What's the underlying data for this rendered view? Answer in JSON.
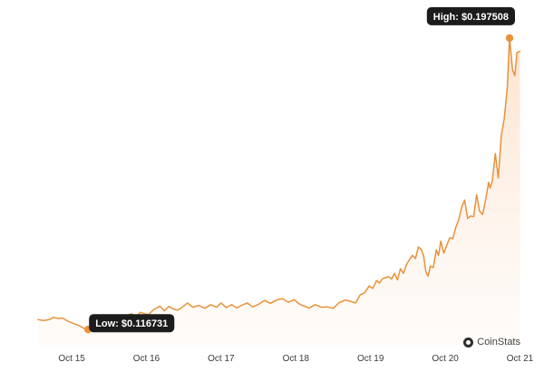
{
  "chart_data": {
    "type": "area",
    "x_ticks": [
      "Oct 15",
      "Oct 16",
      "Oct 17",
      "Oct 18",
      "Oct 19",
      "Oct 20",
      "Oct 21"
    ],
    "x_range": [
      14.55,
      21.03
    ],
    "y_range": [
      0.1125,
      0.2025
    ],
    "y_ticks": [
      0.115,
      0.125,
      0.135,
      0.145,
      0.155,
      0.165,
      0.175,
      0.185,
      0.195
    ],
    "y_tick_labels": [
      "",
      "",
      "",
      "",
      "",
      "",
      "",
      "",
      ""
    ],
    "line_color": "#e8923a",
    "fill_color": "#fbe3cf",
    "grid": false,
    "series": [
      {
        "x": [
          14.55,
          14.62,
          14.7,
          14.76,
          14.82,
          14.88,
          14.95,
          15.0,
          15.05,
          15.1,
          15.16,
          15.22,
          15.28,
          15.33,
          15.38,
          15.44,
          15.5,
          15.55,
          15.62,
          15.68,
          15.74,
          15.8,
          15.86,
          15.92,
          15.98,
          16.03,
          16.1,
          16.18,
          16.24,
          16.3,
          16.36,
          16.42,
          16.48,
          16.55,
          16.62,
          16.7,
          16.78,
          16.86,
          16.94,
          17.0,
          17.07,
          17.14,
          17.21,
          17.28,
          17.35,
          17.42,
          17.5,
          17.58,
          17.66,
          17.74,
          17.82,
          17.9,
          17.98,
          18.04,
          18.1,
          18.18,
          18.26,
          18.34,
          18.42,
          18.5,
          18.58,
          18.66,
          18.72,
          18.8,
          18.86,
          18.92,
          18.98,
          19.03,
          19.08,
          19.12,
          19.16,
          19.2,
          19.24,
          19.28,
          19.32,
          19.36,
          19.4,
          19.44,
          19.48,
          19.52,
          19.56,
          19.6,
          19.64,
          19.68,
          19.71,
          19.74,
          19.77,
          19.8,
          19.84,
          19.88,
          19.91,
          19.94,
          19.98,
          20.02,
          20.06,
          20.1,
          20.14,
          20.18,
          20.22,
          20.26,
          20.3,
          20.34,
          20.38,
          20.42,
          20.46,
          20.5,
          20.54,
          20.58,
          20.6,
          20.63,
          20.67,
          20.71,
          20.75,
          20.79,
          20.83,
          20.86,
          20.9,
          20.93,
          20.96,
          21.0
        ],
        "y": [
          0.1195,
          0.1192,
          0.1195,
          0.1201,
          0.1198,
          0.1199,
          0.119,
          0.1186,
          0.1182,
          0.1178,
          0.1171,
          0.1167,
          0.1177,
          0.1187,
          0.118,
          0.1189,
          0.1203,
          0.1198,
          0.1207,
          0.1195,
          0.1207,
          0.1211,
          0.1203,
          0.1215,
          0.1211,
          0.1209,
          0.1223,
          0.1232,
          0.1219,
          0.1231,
          0.1224,
          0.1221,
          0.1229,
          0.1241,
          0.1229,
          0.1234,
          0.1226,
          0.1236,
          0.1229,
          0.1241,
          0.1228,
          0.1236,
          0.1227,
          0.1235,
          0.1241,
          0.123,
          0.1237,
          0.1248,
          0.124,
          0.1249,
          0.1253,
          0.1243,
          0.125,
          0.1239,
          0.1233,
          0.1227,
          0.1236,
          0.1229,
          0.123,
          0.1226,
          0.1242,
          0.1249,
          0.1246,
          0.1241,
          0.1263,
          0.1269,
          0.1288,
          0.1281,
          0.1303,
          0.1296,
          0.1308,
          0.1311,
          0.1314,
          0.1307,
          0.1323,
          0.1305,
          0.1336,
          0.1323,
          0.1347,
          0.1361,
          0.1373,
          0.1364,
          0.1396,
          0.1389,
          0.1372,
          0.1327,
          0.1315,
          0.1343,
          0.1339,
          0.1388,
          0.1373,
          0.1412,
          0.1379,
          0.1401,
          0.1422,
          0.1419,
          0.145,
          0.1472,
          0.1506,
          0.1526,
          0.1475,
          0.1482,
          0.148,
          0.1541,
          0.1495,
          0.1486,
          0.1527,
          0.1575,
          0.1559,
          0.1579,
          0.1655,
          0.1587,
          0.1705,
          0.1753,
          0.1838,
          0.1975,
          0.1887,
          0.1871,
          0.1935,
          0.1938
        ]
      }
    ],
    "annotations": [
      {
        "label": "Low: $0.116731",
        "x": 15.22,
        "y": 0.116731
      },
      {
        "label": "High: $0.197508",
        "x": 20.86,
        "y": 0.197508
      }
    ]
  },
  "watermark": {
    "text": "CoinStats"
  }
}
